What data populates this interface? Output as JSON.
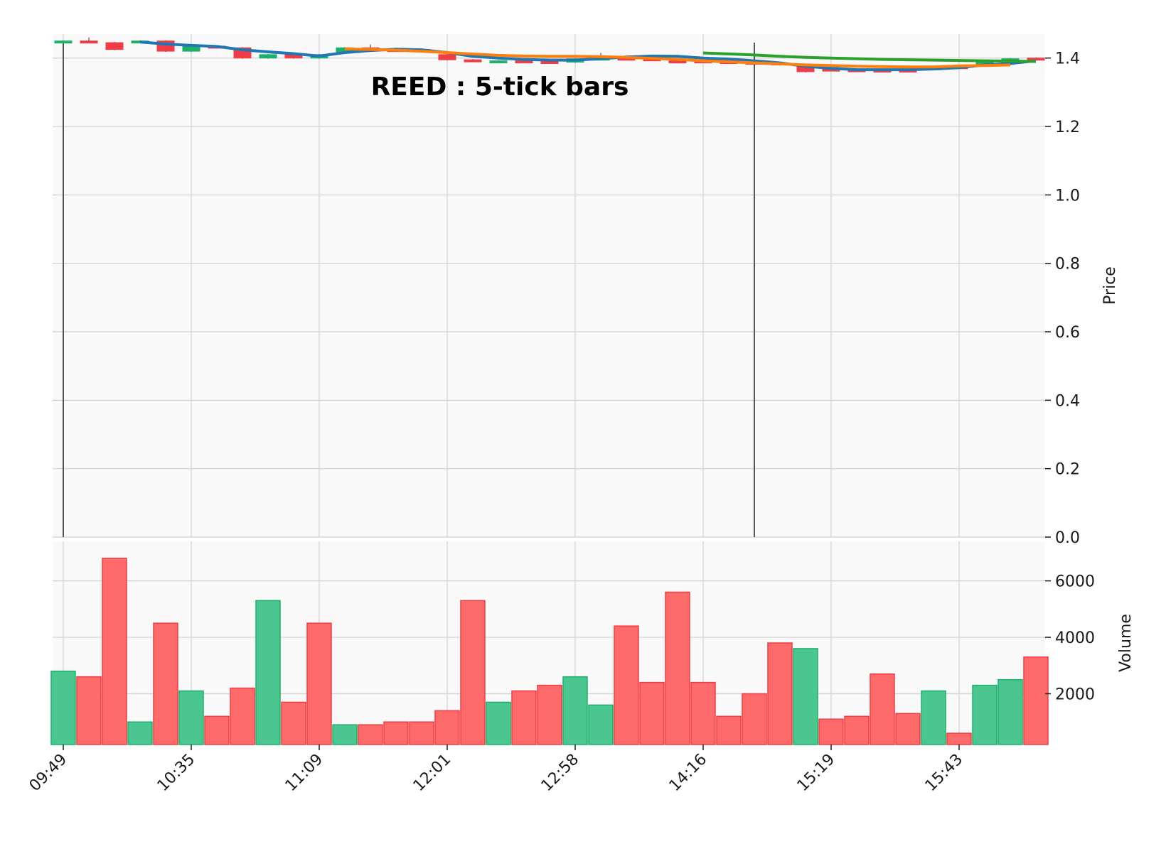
{
  "chart_data": {
    "type": "candlestick",
    "title": "REED : 5-tick bars",
    "x_tick_labels": [
      "09:49",
      "10:35",
      "11:09",
      "12:01",
      "12:58",
      "14:16",
      "15:19",
      "15:43"
    ],
    "x_tick_bar_index": [
      0,
      5,
      10,
      15,
      20,
      25,
      30,
      35
    ],
    "price_axis": {
      "label": "Price",
      "ylim": [
        0.0,
        1.47
      ],
      "ticks": [
        0.0,
        0.2,
        0.4,
        0.6,
        0.8,
        1.0,
        1.2,
        1.4
      ]
    },
    "volume_axis": {
      "label": "Volume",
      "ylim": [
        200,
        7400
      ],
      "ticks": [
        2000,
        4000,
        6000
      ]
    },
    "grid": true,
    "colors": {
      "up": "#26a69a",
      "up_fill": "#4bc690",
      "up_candle": "#1db168",
      "down": "#ef5350",
      "down_fill": "#ff6b6b",
      "down_candle": "#f03c46",
      "ma1": "#1f77b4",
      "ma2": "#ff7f0e",
      "ma3": "#2ca02c",
      "vline": "#555555",
      "grid": "#d0d0d0",
      "plot_bg": "#f9f9f9"
    },
    "vertical_lines_at_bar_index": [
      0,
      27
    ],
    "bars": [
      {
        "o": 1.445,
        "c": 1.45,
        "h": 1.452,
        "l": 1.443,
        "v": 2800
      },
      {
        "o": 1.45,
        "c": 1.445,
        "h": 1.46,
        "l": 1.443,
        "v": 2600
      },
      {
        "o": 1.445,
        "c": 1.425,
        "h": 1.447,
        "l": 1.423,
        "v": 6800
      },
      {
        "o": 1.45,
        "c": 1.45,
        "h": 1.452,
        "l": 1.448,
        "v": 1000
      },
      {
        "o": 1.45,
        "c": 1.42,
        "h": 1.452,
        "l": 1.418,
        "v": 4500
      },
      {
        "o": 1.42,
        "c": 1.435,
        "h": 1.437,
        "l": 1.418,
        "v": 2100
      },
      {
        "o": 1.435,
        "c": 1.433,
        "h": 1.437,
        "l": 1.431,
        "v": 1200
      },
      {
        "o": 1.43,
        "c": 1.4,
        "h": 1.432,
        "l": 1.398,
        "v": 2200
      },
      {
        "o": 1.4,
        "c": 1.41,
        "h": 1.412,
        "l": 1.398,
        "v": 5300
      },
      {
        "o": 1.41,
        "c": 1.4,
        "h": 1.412,
        "l": 1.398,
        "v": 1700
      },
      {
        "o": 1.4,
        "c": 1.41,
        "h": 1.412,
        "l": 1.398,
        "v": 4500
      },
      {
        "o": 1.415,
        "c": 1.43,
        "h": 1.432,
        "l": 1.413,
        "v": 900
      },
      {
        "o": 1.43,
        "c": 1.428,
        "h": 1.44,
        "l": 1.426,
        "v": 900
      },
      {
        "o": 1.425,
        "c": 1.423,
        "h": 1.427,
        "l": 1.421,
        "v": 1000
      },
      {
        "o": 1.425,
        "c": 1.423,
        "h": 1.427,
        "l": 1.421,
        "v": 1000
      },
      {
        "o": 1.41,
        "c": 1.395,
        "h": 1.412,
        "l": 1.393,
        "v": 1400
      },
      {
        "o": 1.395,
        "c": 1.393,
        "h": 1.397,
        "l": 1.391,
        "v": 5300
      },
      {
        "o": 1.39,
        "c": 1.392,
        "h": 1.394,
        "l": 1.388,
        "v": 1700
      },
      {
        "o": 1.392,
        "c": 1.39,
        "h": 1.394,
        "l": 1.388,
        "v": 2100
      },
      {
        "o": 1.39,
        "c": 1.388,
        "h": 1.392,
        "l": 1.386,
        "v": 2300
      },
      {
        "o": 1.388,
        "c": 1.398,
        "h": 1.4,
        "l": 1.386,
        "v": 2600
      },
      {
        "o": 1.398,
        "c": 1.4,
        "h": 1.415,
        "l": 1.396,
        "v": 1600
      },
      {
        "o": 1.4,
        "c": 1.398,
        "h": 1.402,
        "l": 1.396,
        "v": 4400
      },
      {
        "o": 1.398,
        "c": 1.396,
        "h": 1.4,
        "l": 1.394,
        "v": 2400
      },
      {
        "o": 1.392,
        "c": 1.39,
        "h": 1.394,
        "l": 1.388,
        "v": 5600
      },
      {
        "o": 1.392,
        "c": 1.39,
        "h": 1.394,
        "l": 1.388,
        "v": 2400
      },
      {
        "o": 1.39,
        "c": 1.388,
        "h": 1.392,
        "l": 1.386,
        "v": 1200
      },
      {
        "o": 1.388,
        "c": 1.386,
        "h": 1.39,
        "l": 1.384,
        "v": 2000
      },
      {
        "o": 1.386,
        "c": 1.38,
        "h": 1.388,
        "l": 1.378,
        "v": 3800
      },
      {
        "o": 1.378,
        "c": 1.36,
        "h": 1.38,
        "l": 1.358,
        "v": 3600
      },
      {
        "o": 1.368,
        "c": 1.366,
        "h": 1.37,
        "l": 1.364,
        "v": 1100
      },
      {
        "o": 1.366,
        "c": 1.364,
        "h": 1.368,
        "l": 1.362,
        "v": 1200
      },
      {
        "o": 1.365,
        "c": 1.36,
        "h": 1.367,
        "l": 1.358,
        "v": 2700
      },
      {
        "o": 1.365,
        "c": 1.36,
        "h": 1.367,
        "l": 1.358,
        "v": 1300
      },
      {
        "o": 1.37,
        "c": 1.372,
        "h": 1.374,
        "l": 1.368,
        "v": 2100
      },
      {
        "o": 1.375,
        "c": 1.373,
        "h": 1.377,
        "l": 1.371,
        "v": 600
      },
      {
        "o": 1.378,
        "c": 1.388,
        "h": 1.39,
        "l": 1.376,
        "v": 2300
      },
      {
        "o": 1.388,
        "c": 1.398,
        "h": 1.4,
        "l": 1.386,
        "v": 2500
      },
      {
        "o": 1.4,
        "c": 1.398,
        "h": 1.402,
        "l": 1.396,
        "v": 3300
      }
    ],
    "volume_up": [
      true,
      false,
      false,
      true,
      false,
      true,
      false,
      false,
      true,
      false,
      false,
      true,
      false,
      false,
      false,
      false,
      false,
      true,
      false,
      false,
      true,
      true,
      false,
      false,
      false,
      false,
      false,
      false,
      false,
      true,
      false,
      false,
      false,
      false,
      true,
      false,
      true,
      true,
      false
    ],
    "moving_averages": [
      {
        "color_key": "ma1",
        "start_index": 3,
        "values": [
          1.447,
          1.441,
          1.437,
          1.434,
          1.424,
          1.418,
          1.413,
          1.406,
          1.416,
          1.422,
          1.426,
          1.424,
          1.416,
          1.405,
          1.4,
          1.396,
          1.394,
          1.394,
          1.398,
          1.403,
          1.406,
          1.405,
          1.4,
          1.397,
          1.392,
          1.386,
          1.376,
          1.37,
          1.366,
          1.366,
          1.366,
          1.368,
          1.372,
          1.38,
          1.384,
          1.392
        ]
      },
      {
        "color_key": "ma2",
        "start_index": 11,
        "values": [
          1.427,
          1.425,
          1.423,
          1.42,
          1.416,
          1.412,
          1.408,
          1.406,
          1.405,
          1.405,
          1.404,
          1.402,
          1.399,
          1.396,
          1.392,
          1.389,
          1.386,
          1.383,
          1.38,
          1.378,
          1.376,
          1.375,
          1.374,
          1.374,
          1.377,
          1.378,
          1.38
        ]
      },
      {
        "color_key": "ma3",
        "start_index": 25,
        "values": [
          1.415,
          1.412,
          1.409,
          1.405,
          1.402,
          1.4,
          1.398,
          1.396,
          1.395,
          1.394,
          1.393,
          1.392,
          1.391,
          1.39
        ]
      }
    ]
  }
}
